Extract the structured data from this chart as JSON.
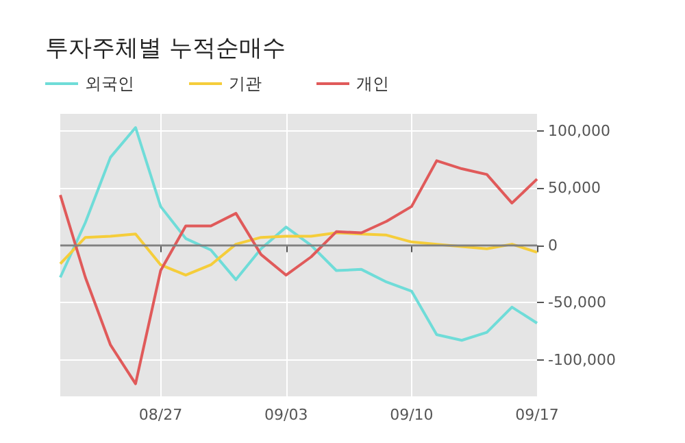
{
  "chart_data": {
    "type": "line",
    "title": "투자주체별 누적순매수",
    "categories": [
      null,
      null,
      null,
      null,
      "08/27",
      null,
      null,
      null,
      null,
      "09/03",
      null,
      null,
      null,
      null,
      "09/10",
      null,
      null,
      null,
      null,
      "09/17"
    ],
    "series": [
      {
        "name": "외국인",
        "color": "#6fdcd8",
        "values": [
          -28000,
          20000,
          77000,
          103000,
          34000,
          6000,
          -4000,
          -30000,
          -3000,
          16000,
          0,
          -22000,
          -21000,
          -32000,
          -40000,
          -78000,
          -83000,
          -76000,
          -54000,
          -68000
        ]
      },
      {
        "name": "기관",
        "color": "#f5cd3a",
        "values": [
          -16000,
          7000,
          8000,
          10000,
          -17000,
          -26000,
          -17000,
          1000,
          7000,
          8000,
          8000,
          11000,
          10000,
          9000,
          3000,
          1000,
          -1000,
          -3000,
          1000,
          -6000
        ]
      },
      {
        "name": "개인",
        "color": "#e05a5a",
        "values": [
          44000,
          -28000,
          -87000,
          -121000,
          -22000,
          17000,
          17000,
          28000,
          -8000,
          -26000,
          -10000,
          12000,
          11000,
          21000,
          34000,
          74000,
          67000,
          62000,
          37000,
          58000
        ]
      }
    ],
    "ylim": [
      -132000,
      115000
    ],
    "yticks": [
      {
        "value": -100000,
        "label": "-100,000"
      },
      {
        "value": -50000,
        "label": "-50,000"
      },
      0,
      {
        "value": 50000,
        "label": "50,000"
      },
      {
        "value": 100000,
        "label": "100,000"
      }
    ],
    "ref_lines": [
      {
        "axis": "y",
        "value": 0,
        "color": "#808080"
      }
    ],
    "grid": true,
    "legend": "top left",
    "marker": "none",
    "line_style": "solid"
  }
}
